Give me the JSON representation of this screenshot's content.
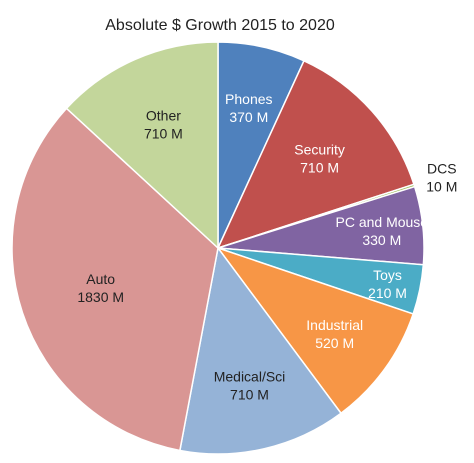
{
  "chart_data": {
    "type": "pie",
    "title": "Absolute $ Growth 2015 to 2020",
    "slices": [
      {
        "label": "Phones",
        "value_label": "370 M",
        "value": 370,
        "color": "#4f81bd",
        "text_color": "#ffffff"
      },
      {
        "label": "Security",
        "value_label": "710 M",
        "value": 710,
        "color": "#c0504d",
        "text_color": "#ffffff"
      },
      {
        "label": "DCS",
        "value_label": "10 M",
        "value": 10,
        "color": "#9bbb59",
        "text_color": "#222222"
      },
      {
        "label": "PC and Mouse",
        "value_label": "330 M",
        "value": 330,
        "color": "#8064a2",
        "text_color": "#ffffff"
      },
      {
        "label": "Toys",
        "value_label": "210 M",
        "value": 210,
        "color": "#4bacc6",
        "text_color": "#ffffff"
      },
      {
        "label": "Industrial",
        "value_label": "520 M",
        "value": 520,
        "color": "#f79646",
        "text_color": "#ffffff"
      },
      {
        "label": "Medical/Sci",
        "value_label": "710 M",
        "value": 710,
        "color": "#95b3d7",
        "text_color": "#222222"
      },
      {
        "label": "Auto",
        "value_label": "1830 M",
        "value": 1830,
        "color": "#d99694",
        "text_color": "#222222"
      },
      {
        "label": "Other",
        "value_label": "710 M",
        "value": 710,
        "color": "#c3d69b",
        "text_color": "#222222"
      }
    ],
    "start_angle": "12 o'clock",
    "direction": "clockwise",
    "legend": "none",
    "labels": "on-slice"
  }
}
